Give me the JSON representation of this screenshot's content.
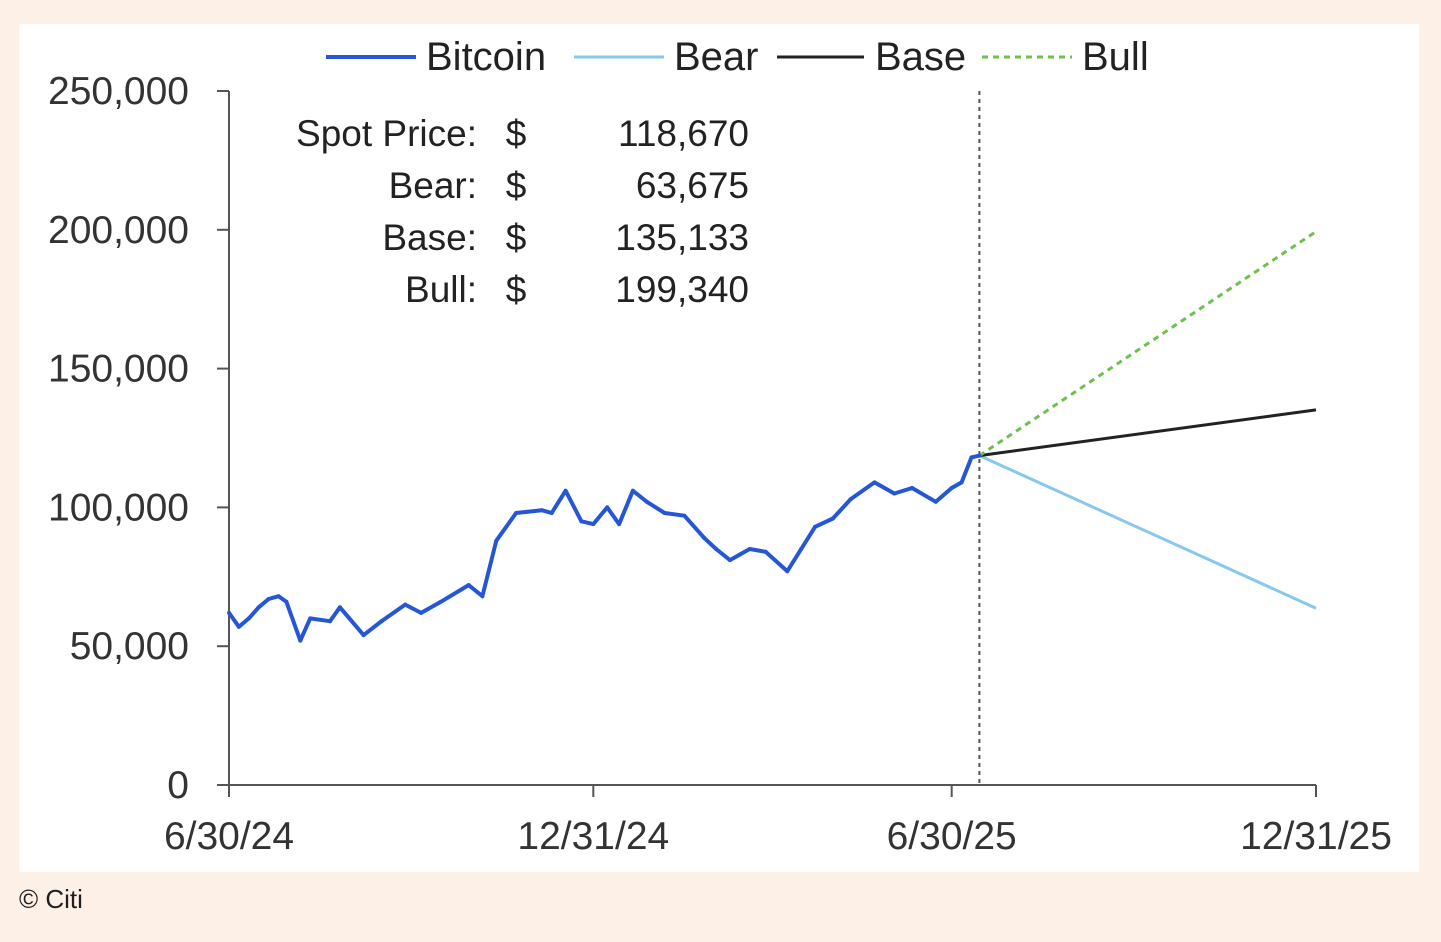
{
  "credit": "© Citi",
  "colors": {
    "bitcoin": "#2456d6",
    "bear": "#88c8ee",
    "base": "#222222",
    "bull": "#6cc24a",
    "axis": "#555555",
    "divider": "#555555"
  },
  "chart_data": {
    "type": "line",
    "title": "",
    "xlabel": "",
    "ylabel": "",
    "ylim": [
      0,
      250000
    ],
    "yticks": [
      0,
      50000,
      100000,
      150000,
      200000,
      250000
    ],
    "ytick_labels": [
      "0",
      "50,000",
      "100,000",
      "150,000",
      "200,000",
      "250,000"
    ],
    "xlim": [
      "2024-06-30",
      "2025-12-31"
    ],
    "xticks": [
      "2024-06-30",
      "2024-12-31",
      "2025-06-30",
      "2025-12-31"
    ],
    "xtick_labels": [
      "6/30/24",
      "12/31/24",
      "6/30/25",
      "12/31/25"
    ],
    "forecast_start": "2025-07-14",
    "grid": false,
    "legend_position": "top",
    "legend": [
      "Bitcoin",
      "Bear",
      "Base",
      "Bull"
    ],
    "series": [
      {
        "name": "Bitcoin",
        "style": "solid",
        "color": "#2456d6",
        "x": [
          "2024-06-30",
          "2024-07-05",
          "2024-07-10",
          "2024-07-15",
          "2024-07-20",
          "2024-07-25",
          "2024-07-29",
          "2024-08-05",
          "2024-08-10",
          "2024-08-20",
          "2024-08-25",
          "2024-09-06",
          "2024-09-15",
          "2024-09-27",
          "2024-10-05",
          "2024-10-15",
          "2024-10-29",
          "2024-11-05",
          "2024-11-12",
          "2024-11-22",
          "2024-12-05",
          "2024-12-10",
          "2024-12-17",
          "2024-12-25",
          "2024-12-31",
          "2025-01-07",
          "2025-01-13",
          "2025-01-20",
          "2025-01-27",
          "2025-02-05",
          "2025-02-15",
          "2025-02-25",
          "2025-03-03",
          "2025-03-10",
          "2025-03-20",
          "2025-03-28",
          "2025-04-08",
          "2025-04-15",
          "2025-04-22",
          "2025-05-01",
          "2025-05-10",
          "2025-05-22",
          "2025-06-01",
          "2025-06-10",
          "2025-06-22",
          "2025-06-30",
          "2025-07-05",
          "2025-07-10",
          "2025-07-14"
        ],
        "y": [
          62000,
          57000,
          60000,
          64000,
          67000,
          68000,
          66000,
          52000,
          60000,
          59000,
          64000,
          54000,
          59000,
          65000,
          62000,
          66000,
          72000,
          68000,
          88000,
          98000,
          99000,
          98000,
          106000,
          95000,
          94000,
          100000,
          94000,
          106000,
          102000,
          98000,
          97000,
          89000,
          85000,
          81000,
          85000,
          84000,
          77000,
          85000,
          93000,
          96000,
          103000,
          109000,
          105000,
          107000,
          102000,
          107000,
          109000,
          118000,
          118670
        ]
      },
      {
        "name": "Bear",
        "style": "solid",
        "color": "#88c8ee",
        "x": [
          "2025-07-14",
          "2025-12-31"
        ],
        "y": [
          118670,
          63675
        ]
      },
      {
        "name": "Base",
        "style": "solid",
        "color": "#222222",
        "x": [
          "2025-07-14",
          "2025-12-31"
        ],
        "y": [
          118670,
          135133
        ]
      },
      {
        "name": "Bull",
        "style": "dashed",
        "color": "#6cc24a",
        "x": [
          "2025-07-14",
          "2025-12-31"
        ],
        "y": [
          118670,
          199340
        ]
      }
    ],
    "annotations": [
      {
        "label": "Spot Price:",
        "currency": "$",
        "value": "118,670"
      },
      {
        "label": "Bear:",
        "currency": "$",
        "value": "63,675"
      },
      {
        "label": "Base:",
        "currency": "$",
        "value": "135,133"
      },
      {
        "label": "Bull:",
        "currency": "$",
        "value": "199,340"
      }
    ]
  }
}
